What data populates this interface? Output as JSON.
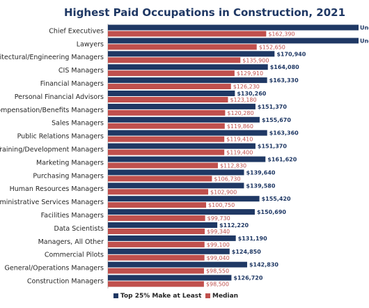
{
  "chart_data": {
    "type": "bar",
    "orientation": "horizontal",
    "title": "Highest Paid Occupations in Construction, 2021",
    "xlim": [
      0,
      200000
    ],
    "grid": false,
    "legend_position": "bottom",
    "categories": [
      "Chief Executives",
      "Lawyers",
      "Architectural/Engineering Managers",
      "CIS Managers",
      "Financial Managers",
      "Personal Financial Advisors",
      "Compensation/Benefits Managers",
      "Sales Managers",
      "Public Relations Managers",
      "Training/Development Managers",
      "Marketing Managers",
      "Purchasing Managers",
      "Human Resources Managers",
      "Administrative Services Managers",
      "Facilities Managers",
      "Data Scientists",
      "Managers, All Other",
      "Commercial Pilots",
      "General/Operations Managers",
      "Construction Managers"
    ],
    "series": [
      {
        "name": "Top 25% Make at Least",
        "color": "#1f3864",
        "values": [
          null,
          null,
          170940,
          164080,
          163330,
          130260,
          151370,
          155670,
          163360,
          151370,
          161620,
          139640,
          139580,
          155420,
          150690,
          112220,
          131190,
          124850,
          142830,
          126720
        ],
        "labels": [
          "Undisc",
          "Undisclosed",
          "$170,940",
          "$164,080",
          "$163,330",
          "$130,260",
          "$151,370",
          "$155,670",
          "$163,360",
          "$151,370",
          "$161,620",
          "$139,640",
          "$139,580",
          "$155,420",
          "$150,690",
          "$112,220",
          "$131,190",
          "$124,850",
          "$142,830",
          "$126,720"
        ]
      },
      {
        "name": "Median",
        "color": "#c0504d",
        "values": [
          162390,
          152650,
          135900,
          129910,
          126230,
          123180,
          120280,
          119860,
          119410,
          119400,
          112830,
          106730,
          102900,
          100750,
          99730,
          99340,
          99100,
          99040,
          98550,
          98500
        ],
        "labels": [
          "$162,390",
          "$152,650",
          "$135,900",
          "$129,910",
          "$126,230",
          "$123,180",
          "$120,280",
          "$119,860",
          "$119,410",
          "$119,400",
          "$112,830",
          "$106,730",
          "$102,900",
          "$100,750",
          "$99,730",
          "$99,340",
          "$99,100",
          "$99,040",
          "$98,550",
          "$98,500"
        ]
      }
    ]
  }
}
